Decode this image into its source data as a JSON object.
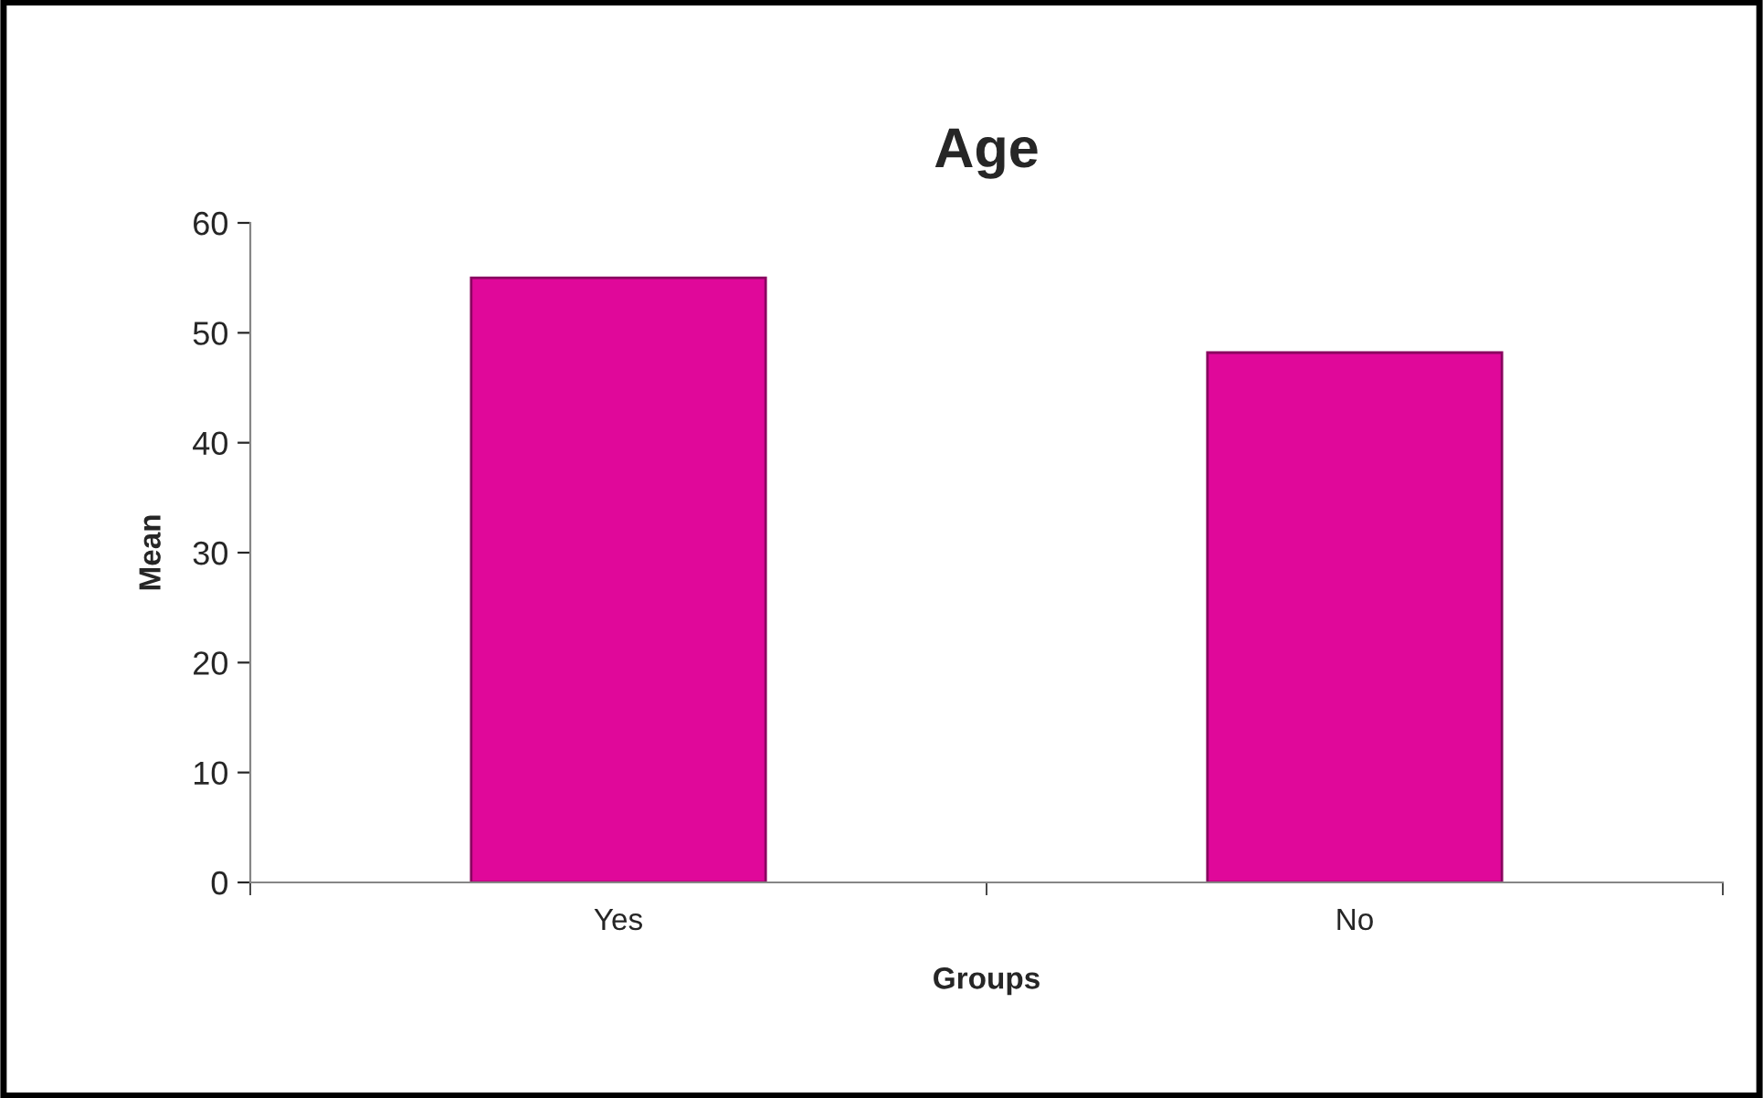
{
  "chart_data": {
    "type": "bar",
    "title": "Age",
    "xlabel": "Groups",
    "ylabel": "Mean",
    "categories": [
      "Yes",
      "No"
    ],
    "values": [
      55,
      48.2
    ],
    "color": "#e0089a",
    "ylim": [
      0,
      60
    ],
    "yticks": [
      0,
      10,
      20,
      30,
      40,
      50,
      60
    ],
    "grid": false,
    "legend": false
  }
}
